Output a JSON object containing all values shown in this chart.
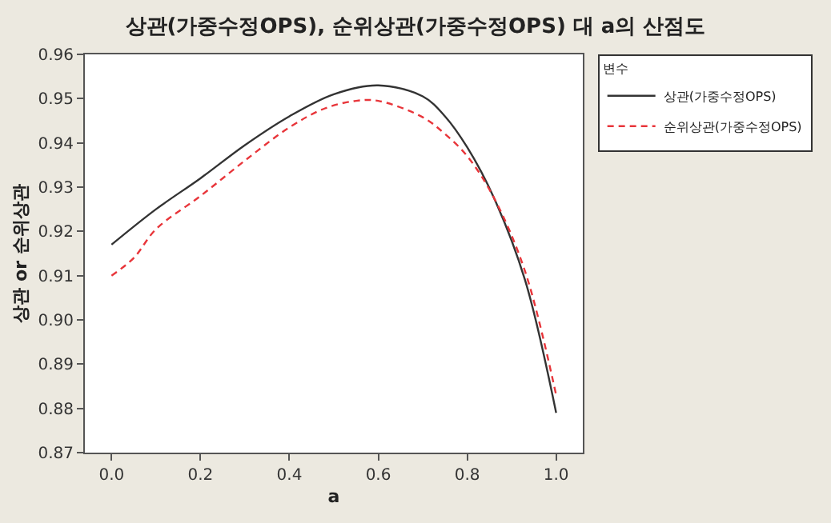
{
  "chart_data": {
    "type": "line",
    "title": "상관(가중수정OPS), 순위상관(가중수정OPS) 대 a의 산점도",
    "xlabel": "a",
    "ylabel": "상관 or 순위상관",
    "legend_title": "변수",
    "legend": "right",
    "marker": "none",
    "xlim": [
      -0.06,
      1.06
    ],
    "xticks": [
      {
        "value": 0,
        "label": "0.0"
      },
      {
        "value": 0.2,
        "label": "0.2"
      },
      {
        "value": 0.4,
        "label": "0.4"
      },
      {
        "value": 0.6,
        "label": "0.6"
      },
      {
        "value": 0.8,
        "label": "0.8"
      },
      {
        "value": 1,
        "label": "1.0"
      }
    ],
    "ylim": [
      0.87,
      0.96
    ],
    "yticks": [
      {
        "value": 0.87,
        "label": "0.87"
      },
      {
        "value": 0.88,
        "label": "0.88"
      },
      {
        "value": 0.89,
        "label": "0.89"
      },
      {
        "value": 0.9,
        "label": "0.90"
      },
      {
        "value": 0.91,
        "label": "0.91"
      },
      {
        "value": 0.92,
        "label": "0.92"
      },
      {
        "value": 0.93,
        "label": "0.93"
      },
      {
        "value": 0.94,
        "label": "0.94"
      },
      {
        "value": 0.95,
        "label": "0.95"
      },
      {
        "value": 0.96,
        "label": "0.96"
      }
    ],
    "series": [
      {
        "name": "상관(가중수정OPS)",
        "color": "#333333",
        "line_style": "solid",
        "x": [
          0,
          0.1,
          0.2,
          0.3,
          0.4,
          0.5,
          0.6,
          0.7,
          0.75,
          0.8,
          0.86,
          0.93,
          1.0
        ],
        "values": [
          0.917,
          0.925,
          0.932,
          0.9395,
          0.946,
          0.951,
          0.953,
          0.9505,
          0.946,
          0.939,
          0.9276,
          0.909,
          0.879
        ]
      },
      {
        "name": "순위상관(가중수정OPS)",
        "color": "#e8353a",
        "line_style": "dashed",
        "x": [
          0,
          0.05,
          0.1,
          0.2,
          0.3,
          0.4,
          0.48,
          0.55,
          0.6,
          0.7,
          0.75,
          0.8,
          0.86,
          0.93,
          1.0
        ],
        "values": [
          0.91,
          0.914,
          0.9205,
          0.928,
          0.936,
          0.9435,
          0.9478,
          0.9495,
          0.9495,
          0.9458,
          0.942,
          0.937,
          0.9276,
          0.911,
          0.883
        ]
      }
    ]
  }
}
